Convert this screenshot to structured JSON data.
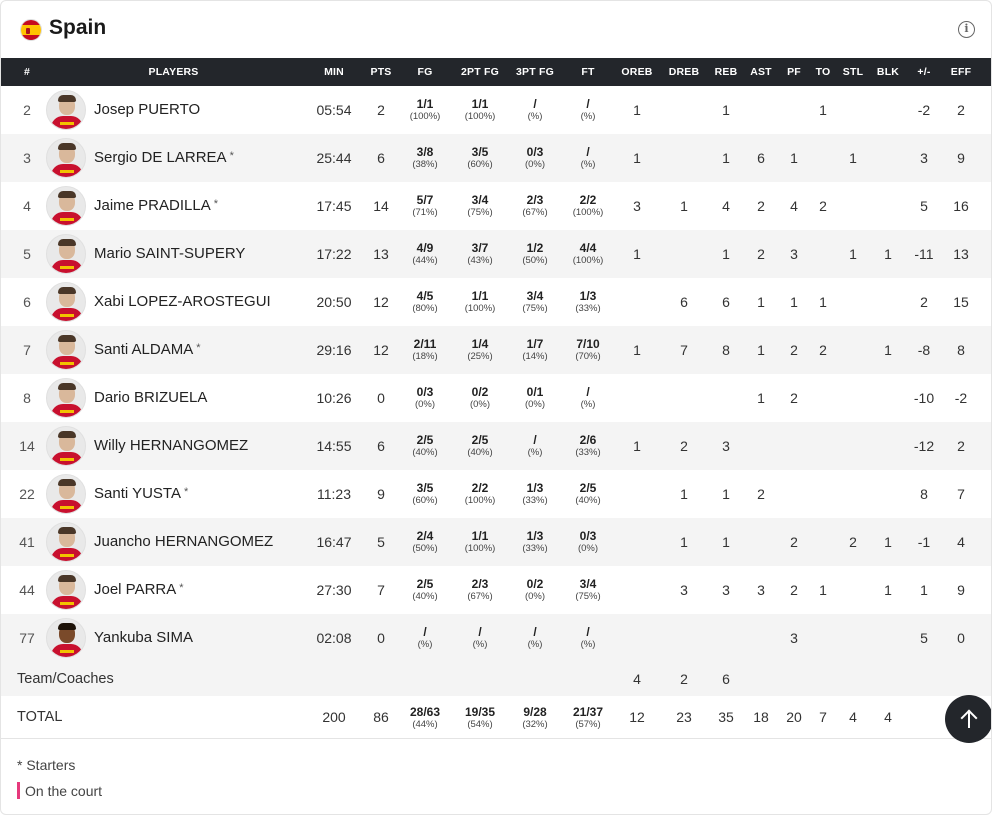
{
  "team": {
    "name": "Spain"
  },
  "columns": [
    "#",
    "PLAYERS",
    "MIN",
    "PTS",
    "FG",
    "2PT FG",
    "3PT FG",
    "FT",
    "OREB",
    "DREB",
    "REB",
    "AST",
    "PF",
    "TO",
    "STL",
    "BLK",
    "+/-",
    "EFF"
  ],
  "players": [
    {
      "num": "2",
      "name": "Josep PUERTO",
      "starter": false,
      "min": "05:54",
      "pts": "2",
      "fg": [
        "1/1",
        "(100%)"
      ],
      "fg2": [
        "1/1",
        "(100%)"
      ],
      "fg3": [
        "/",
        "(%)"
      ],
      "ft": [
        "/",
        "(%)"
      ],
      "oreb": "1",
      "dreb": "",
      "reb": "1",
      "ast": "",
      "pf": "",
      "to": "1",
      "stl": "",
      "blk": "",
      "pm": "-2",
      "eff": "2",
      "dark": false
    },
    {
      "num": "3",
      "name": "Sergio DE LARREA",
      "starter": true,
      "min": "25:44",
      "pts": "6",
      "fg": [
        "3/8",
        "(38%)"
      ],
      "fg2": [
        "3/5",
        "(60%)"
      ],
      "fg3": [
        "0/3",
        "(0%)"
      ],
      "ft": [
        "/",
        "(%)"
      ],
      "oreb": "1",
      "dreb": "",
      "reb": "1",
      "ast": "6",
      "pf": "1",
      "to": "",
      "stl": "1",
      "blk": "",
      "pm": "3",
      "eff": "9",
      "dark": false
    },
    {
      "num": "4",
      "name": "Jaime PRADILLA",
      "starter": true,
      "min": "17:45",
      "pts": "14",
      "fg": [
        "5/7",
        "(71%)"
      ],
      "fg2": [
        "3/4",
        "(75%)"
      ],
      "fg3": [
        "2/3",
        "(67%)"
      ],
      "ft": [
        "2/2",
        "(100%)"
      ],
      "oreb": "3",
      "dreb": "1",
      "reb": "4",
      "ast": "2",
      "pf": "4",
      "to": "2",
      "stl": "",
      "blk": "",
      "pm": "5",
      "eff": "16",
      "dark": false
    },
    {
      "num": "5",
      "name": "Mario SAINT-SUPERY",
      "starter": false,
      "min": "17:22",
      "pts": "13",
      "fg": [
        "4/9",
        "(44%)"
      ],
      "fg2": [
        "3/7",
        "(43%)"
      ],
      "fg3": [
        "1/2",
        "(50%)"
      ],
      "ft": [
        "4/4",
        "(100%)"
      ],
      "oreb": "1",
      "dreb": "",
      "reb": "1",
      "ast": "2",
      "pf": "3",
      "to": "",
      "stl": "1",
      "blk": "1",
      "pm": "-11",
      "eff": "13",
      "dark": false
    },
    {
      "num": "6",
      "name": "Xabi LOPEZ-AROSTEGUI",
      "starter": false,
      "min": "20:50",
      "pts": "12",
      "fg": [
        "4/5",
        "(80%)"
      ],
      "fg2": [
        "1/1",
        "(100%)"
      ],
      "fg3": [
        "3/4",
        "(75%)"
      ],
      "ft": [
        "1/3",
        "(33%)"
      ],
      "oreb": "",
      "dreb": "6",
      "reb": "6",
      "ast": "1",
      "pf": "1",
      "to": "1",
      "stl": "",
      "blk": "",
      "pm": "2",
      "eff": "15",
      "dark": false
    },
    {
      "num": "7",
      "name": "Santi ALDAMA",
      "starter": true,
      "min": "29:16",
      "pts": "12",
      "fg": [
        "2/11",
        "(18%)"
      ],
      "fg2": [
        "1/4",
        "(25%)"
      ],
      "fg3": [
        "1/7",
        "(14%)"
      ],
      "ft": [
        "7/10",
        "(70%)"
      ],
      "oreb": "1",
      "dreb": "7",
      "reb": "8",
      "ast": "1",
      "pf": "2",
      "to": "2",
      "stl": "",
      "blk": "1",
      "pm": "-8",
      "eff": "8",
      "dark": false
    },
    {
      "num": "8",
      "name": "Dario BRIZUELA",
      "starter": false,
      "min": "10:26",
      "pts": "0",
      "fg": [
        "0/3",
        "(0%)"
      ],
      "fg2": [
        "0/2",
        "(0%)"
      ],
      "fg3": [
        "0/1",
        "(0%)"
      ],
      "ft": [
        "/",
        "(%)"
      ],
      "oreb": "",
      "dreb": "",
      "reb": "",
      "ast": "1",
      "pf": "2",
      "to": "",
      "stl": "",
      "blk": "",
      "pm": "-10",
      "eff": "-2",
      "dark": false
    },
    {
      "num": "14",
      "name": "Willy HERNANGOMEZ",
      "starter": false,
      "min": "14:55",
      "pts": "6",
      "fg": [
        "2/5",
        "(40%)"
      ],
      "fg2": [
        "2/5",
        "(40%)"
      ],
      "fg3": [
        "/",
        "(%)"
      ],
      "ft": [
        "2/6",
        "(33%)"
      ],
      "oreb": "1",
      "dreb": "2",
      "reb": "3",
      "ast": "",
      "pf": "",
      "to": "",
      "stl": "",
      "blk": "",
      "pm": "-12",
      "eff": "2",
      "dark": false
    },
    {
      "num": "22",
      "name": "Santi YUSTA",
      "starter": true,
      "min": "11:23",
      "pts": "9",
      "fg": [
        "3/5",
        "(60%)"
      ],
      "fg2": [
        "2/2",
        "(100%)"
      ],
      "fg3": [
        "1/3",
        "(33%)"
      ],
      "ft": [
        "2/5",
        "(40%)"
      ],
      "oreb": "",
      "dreb": "1",
      "reb": "1",
      "ast": "2",
      "pf": "",
      "to": "",
      "stl": "",
      "blk": "",
      "pm": "8",
      "eff": "7",
      "dark": false
    },
    {
      "num": "41",
      "name": "Juancho HERNANGOMEZ",
      "starter": false,
      "min": "16:47",
      "pts": "5",
      "fg": [
        "2/4",
        "(50%)"
      ],
      "fg2": [
        "1/1",
        "(100%)"
      ],
      "fg3": [
        "1/3",
        "(33%)"
      ],
      "ft": [
        "0/3",
        "(0%)"
      ],
      "oreb": "",
      "dreb": "1",
      "reb": "1",
      "ast": "",
      "pf": "2",
      "to": "",
      "stl": "2",
      "blk": "1",
      "pm": "-1",
      "eff": "4",
      "dark": false
    },
    {
      "num": "44",
      "name": "Joel PARRA",
      "starter": true,
      "min": "27:30",
      "pts": "7",
      "fg": [
        "2/5",
        "(40%)"
      ],
      "fg2": [
        "2/3",
        "(67%)"
      ],
      "fg3": [
        "0/2",
        "(0%)"
      ],
      "ft": [
        "3/4",
        "(75%)"
      ],
      "oreb": "",
      "dreb": "3",
      "reb": "3",
      "ast": "3",
      "pf": "2",
      "to": "1",
      "stl": "",
      "blk": "1",
      "pm": "1",
      "eff": "9",
      "dark": false
    },
    {
      "num": "77",
      "name": "Yankuba SIMA",
      "starter": false,
      "min": "02:08",
      "pts": "0",
      "fg": [
        "/",
        "(%)"
      ],
      "fg2": [
        "/",
        "(%)"
      ],
      "fg3": [
        "/",
        "(%)"
      ],
      "ft": [
        "/",
        "(%)"
      ],
      "oreb": "",
      "dreb": "",
      "reb": "",
      "ast": "",
      "pf": "3",
      "to": "",
      "stl": "",
      "blk": "",
      "pm": "5",
      "eff": "0",
      "dark": true
    }
  ],
  "team_coaches": {
    "label": "Team/Coaches",
    "oreb": "4",
    "dreb": "2",
    "reb": "6"
  },
  "total": {
    "label": "TOTAL",
    "min": "200",
    "pts": "86",
    "fg": [
      "28/63",
      "(44%)"
    ],
    "fg2": [
      "19/35",
      "(54%)"
    ],
    "fg3": [
      "9/28",
      "(32%)"
    ],
    "ft": [
      "21/37",
      "(57%)"
    ],
    "oreb": "12",
    "dreb": "23",
    "reb": "35",
    "ast": "18",
    "pf": "20",
    "to": "7",
    "stl": "4",
    "blk": "4"
  },
  "legend": {
    "starters": "* Starters",
    "on_court": "On the court",
    "on_court_color": "#e6397c"
  },
  "starter_mark": "*",
  "colors": {
    "header_bg": "#23262b",
    "row_alt": "#f4f4f4",
    "jersey": "#c8102e"
  },
  "icons": {
    "info": "info-icon",
    "scroll_top": "arrow-up-icon",
    "flag": "spain-flag-icon"
  }
}
